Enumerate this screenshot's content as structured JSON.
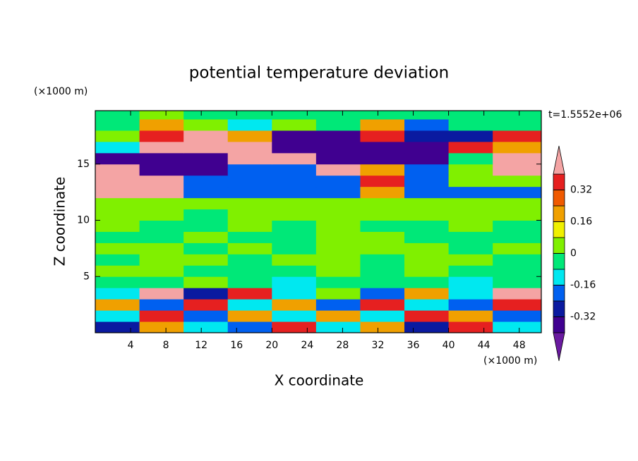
{
  "chart_data": {
    "type": "contour",
    "title": "potential temperature deviation",
    "x_label": "X coordinate",
    "y_label": "Z coordinate",
    "x_unit": "(×1000 m)",
    "y_unit": "(×1000 m)",
    "time_label": "t=1.5552e+06",
    "xlim": [
      0,
      50.5
    ],
    "ylim": [
      0,
      19.75
    ],
    "xticks": [
      4,
      8,
      12,
      16,
      20,
      24,
      28,
      32,
      36,
      40,
      44,
      48
    ],
    "yticks": [
      5,
      10,
      15
    ],
    "x": [
      2.5,
      7.5,
      12.5,
      17.5,
      22.5,
      27.5,
      32.5,
      37.5,
      42.5,
      47.5
    ],
    "y": [
      0.5,
      1.5,
      2.5,
      3.5,
      4.5,
      5.5,
      6.5,
      7.5,
      8.5,
      9.5,
      10.5,
      11.5,
      12.5,
      13.5,
      14.5,
      15.5,
      16.5,
      17.5,
      18.5,
      19.5
    ],
    "values": [
      [
        -0.28,
        0.2,
        -0.12,
        -0.2,
        0.36,
        -0.12,
        0.2,
        -0.28,
        0.36,
        -0.12
      ],
      [
        -0.12,
        0.36,
        -0.2,
        0.2,
        -0.12,
        0.2,
        -0.12,
        0.36,
        0.2,
        -0.2
      ],
      [
        0.2,
        -0.2,
        0.36,
        -0.12,
        0.2,
        -0.2,
        0.36,
        -0.12,
        -0.2,
        0.36
      ],
      [
        -0.12,
        0.45,
        -0.28,
        0.36,
        -0.12,
        0.04,
        -0.2,
        0.2,
        -0.12,
        0.45
      ],
      [
        -0.04,
        -0.04,
        0.04,
        -0.04,
        -0.12,
        -0.04,
        -0.04,
        -0.04,
        -0.12,
        -0.04
      ],
      [
        0.04,
        0.04,
        -0.04,
        -0.04,
        -0.04,
        0.04,
        -0.04,
        0.04,
        -0.04,
        -0.04
      ],
      [
        -0.04,
        0.04,
        0.04,
        -0.04,
        0.04,
        0.04,
        -0.04,
        0.04,
        0.04,
        -0.04
      ],
      [
        0.04,
        0.04,
        -0.04,
        0.04,
        -0.04,
        0.04,
        0.04,
        0.04,
        -0.04,
        0.04
      ],
      [
        -0.04,
        -0.04,
        0.04,
        -0.04,
        -0.04,
        0.04,
        0.04,
        -0.04,
        -0.04,
        -0.04
      ],
      [
        0.04,
        -0.04,
        -0.04,
        0.04,
        -0.04,
        0.04,
        -0.04,
        -0.04,
        0.04,
        -0.04
      ],
      [
        0.04,
        0.04,
        -0.04,
        0.04,
        0.04,
        0.04,
        0.04,
        0.04,
        0.04,
        0.04
      ],
      [
        0.04,
        0.04,
        0.04,
        0.04,
        0.04,
        0.04,
        0.04,
        0.04,
        0.04,
        0.04
      ],
      [
        0.45,
        0.45,
        -0.2,
        -0.2,
        -0.2,
        -0.2,
        0.2,
        -0.2,
        -0.2,
        -0.2
      ],
      [
        0.45,
        0.45,
        -0.2,
        -0.2,
        -0.2,
        -0.2,
        0.36,
        -0.2,
        0.04,
        0.04
      ],
      [
        0.45,
        -0.36,
        -0.36,
        -0.2,
        -0.2,
        0.45,
        0.2,
        -0.2,
        0.04,
        0.45
      ],
      [
        -0.36,
        -0.36,
        -0.36,
        0.45,
        0.45,
        -0.36,
        -0.36,
        -0.36,
        -0.04,
        0.45
      ],
      [
        -0.12,
        0.45,
        0.45,
        0.45,
        -0.36,
        -0.36,
        -0.36,
        -0.36,
        0.36,
        0.2
      ],
      [
        0.04,
        0.36,
        0.45,
        0.2,
        -0.36,
        -0.36,
        0.36,
        -0.28,
        -0.28,
        0.36
      ],
      [
        -0.04,
        0.2,
        0.04,
        -0.12,
        0.04,
        -0.04,
        0.2,
        -0.2,
        -0.04,
        -0.04
      ],
      [
        -0.04,
        0.04,
        -0.04,
        -0.04,
        -0.04,
        -0.04,
        -0.04,
        -0.04,
        -0.04,
        -0.04
      ]
    ],
    "clim": [
      -0.4,
      0.4
    ],
    "level_step": 0.08,
    "cticks": [
      0.32,
      0.16,
      0,
      -0.16,
      -0.32
    ],
    "colors": [
      "#6a1aa0",
      "#400090",
      "#0a1aa0",
      "#0060f0",
      "#00e8f0",
      "#00e878",
      "#80f000",
      "#f0f000",
      "#f0a000",
      "#f05a00",
      "#e62020",
      "#f4a4a4"
    ]
  }
}
